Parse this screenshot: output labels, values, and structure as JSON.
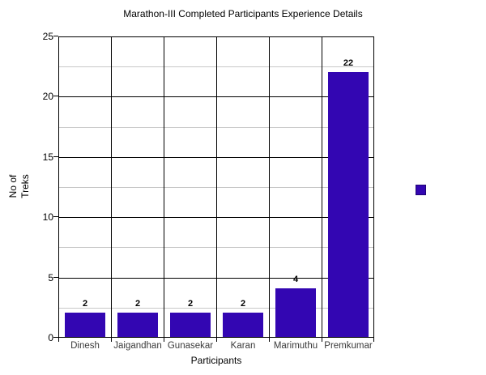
{
  "page": {
    "background_color": "#ffffff"
  },
  "chart_data": {
    "type": "bar",
    "title": "Marathon-III Completed Participants Experience Details",
    "categories": [
      "Dinesh",
      "Jaigandhan",
      "Gunasekar",
      "Karan",
      "Marimuthu",
      "Premkumar"
    ],
    "values": [
      2,
      2,
      2,
      2,
      4,
      22
    ],
    "data_labels": [
      "2",
      "2",
      "2",
      "2",
      "4",
      "22"
    ],
    "xlabel": "Participants",
    "ylabel_lines": [
      "No of",
      "Treks"
    ],
    "ylabel": "No of Treks",
    "ylim": [
      0,
      25
    ],
    "y_major_step": 5,
    "y_minor_step": 2.5,
    "y_tick_labels": [
      "0",
      "5",
      "10",
      "15",
      "20",
      "25"
    ],
    "grid": {
      "major_horizontal": "on",
      "minor_horizontal": "on",
      "vertical_column_separators": "on"
    },
    "legend": {
      "position": "right-middle",
      "label": "",
      "marker": "square"
    },
    "colors": {
      "bar": "#3306B2",
      "major_grid": "#000000",
      "minor_grid": "#c8c8c8",
      "axis": "#000000",
      "title_text": "#000000",
      "tick_text": "#000000",
      "category_text": "#3a3a3a",
      "data_label_text": "#000000"
    }
  }
}
